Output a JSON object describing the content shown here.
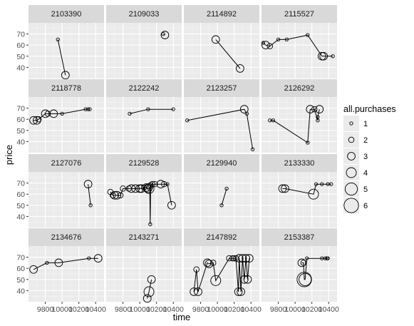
{
  "chart_data": {
    "type": "line",
    "xlabel": "time",
    "ylabel": "price",
    "xlim": [
      9600,
      10500
    ],
    "ylim": [
      30,
      80
    ],
    "x_ticks": [
      9800,
      10000,
      10200,
      10400
    ],
    "x_tick_labels": [
      "9800",
      "10000",
      "10200",
      "10400"
    ],
    "y_ticks": [
      40,
      50,
      60,
      70
    ],
    "y_tick_labels": [
      "40",
      "50",
      "60",
      "70"
    ],
    "legend": {
      "title": "all.purchases",
      "placement": "right",
      "levels": [
        1,
        2,
        3,
        4,
        5,
        6
      ],
      "labels": [
        "1",
        "2",
        "3",
        "4",
        "5",
        "6"
      ]
    },
    "colors": {
      "panel_bg": "#ebebeb",
      "strip_bg": "#d9d9d9",
      "grid_major": "#ffffff",
      "grid_minor": "#f5f5f5",
      "mark": "#000000"
    },
    "grid": true,
    "facet_layout": {
      "rows": 4,
      "cols": 4
    },
    "panels": [
      {
        "label": "2103390",
        "points": [
          [
            9950,
            65,
            1
          ],
          [
            10040,
            33,
            3
          ]
        ]
      },
      {
        "label": "2109033",
        "points": [
          [
            10280,
            70,
            1
          ],
          [
            10300,
            69,
            3
          ]
        ]
      },
      {
        "label": "2114892",
        "points": [
          [
            9980,
            65,
            3
          ],
          [
            10270,
            39,
            3
          ]
        ]
      },
      {
        "label": "2115527",
        "points": [
          [
            9620,
            62,
            1
          ],
          [
            9650,
            60,
            3
          ],
          [
            9700,
            59,
            2
          ],
          [
            9800,
            65,
            1
          ],
          [
            9900,
            65,
            1
          ],
          [
            10150,
            69,
            1
          ],
          [
            10320,
            50,
            3
          ],
          [
            10340,
            50,
            3
          ],
          [
            10450,
            50,
            1
          ]
        ]
      },
      {
        "label": "2118778",
        "points": [
          [
            9660,
            59,
            3
          ],
          [
            9700,
            59,
            3
          ],
          [
            9720,
            60,
            2
          ],
          [
            9800,
            65,
            3
          ],
          [
            9830,
            65,
            2
          ],
          [
            9900,
            65,
            3
          ],
          [
            10000,
            65,
            1
          ],
          [
            10280,
            69,
            1
          ],
          [
            10310,
            69,
            1
          ],
          [
            10330,
            69,
            1
          ]
        ]
      },
      {
        "label": "2122242",
        "points": [
          [
            9880,
            65,
            1
          ],
          [
            10100,
            69,
            1
          ],
          [
            10400,
            69,
            1
          ]
        ]
      },
      {
        "label": "2123257",
        "points": [
          [
            9640,
            59,
            1
          ],
          [
            10320,
            69,
            3
          ],
          [
            10350,
            65,
            1
          ],
          [
            10420,
            33,
            1
          ]
        ]
      },
      {
        "label": "2126292",
        "points": [
          [
            9700,
            59,
            1
          ],
          [
            9740,
            59,
            1
          ],
          [
            10150,
            39,
            1
          ],
          [
            10180,
            69,
            3
          ],
          [
            10230,
            69,
            2
          ],
          [
            10270,
            59,
            1
          ],
          [
            10270,
            62,
            1
          ],
          [
            10290,
            69,
            3
          ]
        ]
      },
      {
        "label": "2127076",
        "points": [
          [
            10310,
            69,
            3
          ],
          [
            10340,
            50,
            1
          ]
        ]
      },
      {
        "label": "2129528",
        "points": [
          [
            9650,
            62,
            2
          ],
          [
            9680,
            59,
            2
          ],
          [
            9700,
            59,
            3
          ],
          [
            9730,
            59,
            3
          ],
          [
            9770,
            59,
            2
          ],
          [
            9800,
            65,
            2
          ],
          [
            9870,
            65,
            2
          ],
          [
            9900,
            65,
            3
          ],
          [
            9950,
            65,
            3
          ],
          [
            10000,
            65,
            3
          ],
          [
            10020,
            65,
            3
          ],
          [
            10050,
            66,
            2
          ],
          [
            10080,
            66,
            3
          ],
          [
            10100,
            65,
            3
          ],
          [
            10110,
            65,
            4
          ],
          [
            10120,
            66,
            2
          ],
          [
            10125,
            33,
            1
          ],
          [
            10130,
            68,
            2
          ],
          [
            10150,
            69,
            2
          ],
          [
            10180,
            69,
            2
          ],
          [
            10250,
            69,
            3
          ],
          [
            10290,
            69,
            2
          ],
          [
            10330,
            69,
            1
          ],
          [
            10380,
            50,
            3
          ]
        ]
      },
      {
        "label": "2129940",
        "points": [
          [
            10050,
            50,
            1
          ],
          [
            10110,
            65,
            1
          ]
        ]
      },
      {
        "label": "2133330",
        "points": [
          [
            9850,
            65,
            3
          ],
          [
            9880,
            65,
            3
          ],
          [
            10220,
            60,
            4
          ],
          [
            10250,
            69,
            1
          ],
          [
            10320,
            69,
            1
          ],
          [
            10390,
            69,
            1
          ],
          [
            10430,
            69,
            1
          ]
        ]
      },
      {
        "label": "2134676",
        "points": [
          [
            9660,
            59,
            3
          ],
          [
            9820,
            65,
            1
          ],
          [
            9960,
            65,
            3
          ],
          [
            10320,
            69,
            1
          ],
          [
            10430,
            69,
            3
          ]
        ]
      },
      {
        "label": "2143271",
        "points": [
          [
            10090,
            33,
            3
          ],
          [
            10110,
            39,
            4
          ],
          [
            10140,
            50,
            3
          ]
        ]
      },
      {
        "label": "2147892",
        "points": [
          [
            9720,
            39,
            3
          ],
          [
            9750,
            59,
            2
          ],
          [
            9770,
            39,
            3
          ],
          [
            9880,
            65,
            3
          ],
          [
            9900,
            64,
            3
          ],
          [
            9950,
            65,
            2
          ],
          [
            9980,
            49,
            4
          ],
          [
            10140,
            69,
            2
          ],
          [
            10180,
            69,
            2
          ],
          [
            10200,
            69,
            2
          ],
          [
            10220,
            69,
            2
          ],
          [
            10250,
            39,
            3
          ],
          [
            10260,
            69,
            3
          ],
          [
            10280,
            39,
            3
          ],
          [
            10300,
            69,
            3
          ],
          [
            10320,
            50,
            3
          ],
          [
            10340,
            69,
            3
          ],
          [
            10360,
            50,
            3
          ],
          [
            10380,
            69,
            3
          ]
        ]
      },
      {
        "label": "2153387",
        "points": [
          [
            10080,
            65,
            3
          ],
          [
            10100,
            65,
            2
          ],
          [
            10110,
            50,
            6
          ],
          [
            10120,
            50,
            5
          ],
          [
            10140,
            69,
            1
          ],
          [
            10320,
            69,
            1
          ],
          [
            10360,
            69,
            1
          ],
          [
            10380,
            69,
            1
          ],
          [
            10390,
            69,
            1
          ]
        ]
      }
    ]
  }
}
